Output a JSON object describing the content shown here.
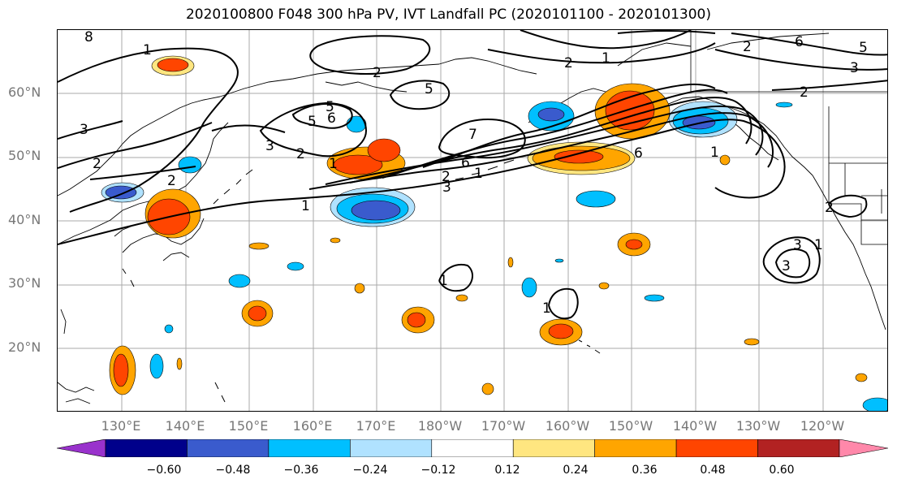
{
  "title": "2020100800 F048 300 hPa PV, IVT Landfall PC (2020101100 - 2020101300)",
  "lat_labels": [
    "60°N",
    "50°N",
    "40°N",
    "30°N",
    "20°N"
  ],
  "lon_labels": [
    "130°E",
    "140°E",
    "150°E",
    "160°E",
    "170°E",
    "180°W",
    "170°W",
    "160°W",
    "150°W",
    "140°W",
    "130°W",
    "120°W"
  ],
  "colorbar": {
    "ticks": [
      "−0.60",
      "−0.48",
      "−0.36",
      "−0.24",
      "−0.12",
      "0.12",
      "0.24",
      "0.36",
      "0.48",
      "0.60"
    ],
    "colors": [
      "#9932cc",
      "#00008b",
      "#3a5bcd",
      "#00bfff",
      "#b0e2ff",
      "#ffffff",
      "#ffe680",
      "#ffa500",
      "#ff4500",
      "#b22222",
      "#ff88aa"
    ]
  },
  "contour_labels": [
    "8",
    "1",
    "2",
    "3",
    "2",
    "2",
    "5",
    "1",
    "6",
    "5",
    "3",
    "2",
    "2",
    "6",
    "5",
    "3",
    "5",
    "2",
    "1",
    "7",
    "6",
    "2",
    "3",
    "1",
    "6",
    "1",
    "2",
    "1",
    "3",
    "1",
    "1",
    "3",
    "2",
    "1"
  ]
}
